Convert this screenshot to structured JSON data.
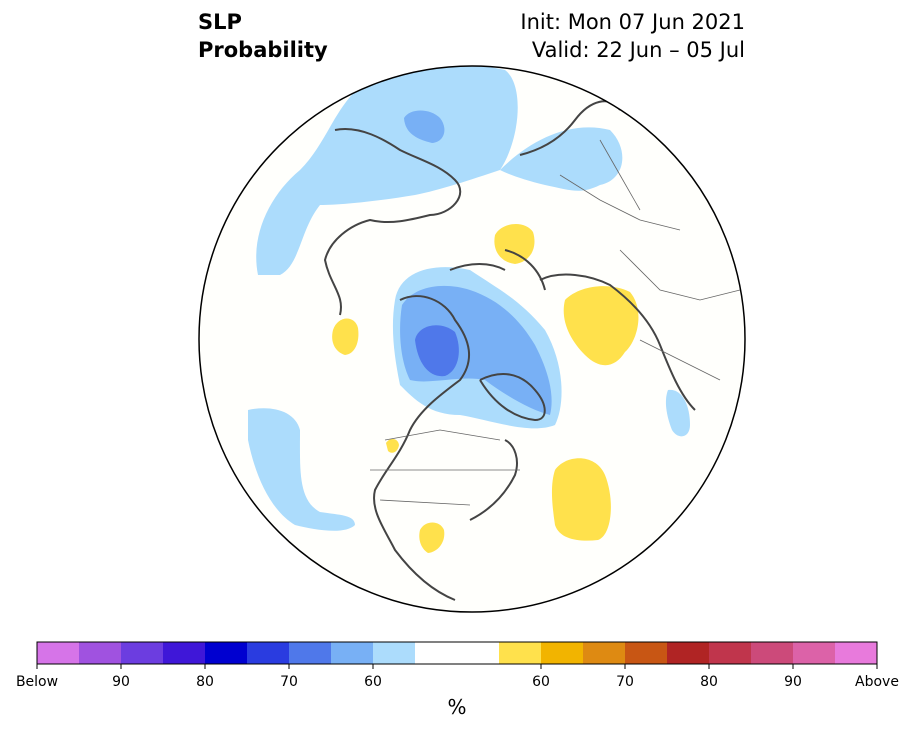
{
  "title": {
    "variable": "SLP",
    "product": "Probability",
    "init": "Init: Mon 07 Jun 2021",
    "valid": "Valid: 22 Jun – 05 Jul"
  },
  "colorbar": {
    "unit": "%",
    "colors": [
      "#d674e8",
      "#a052e0",
      "#6c3de0",
      "#3f17d8",
      "#0000d0",
      "#2a3ce0",
      "#4f78ea",
      "#78b0f5",
      "#acdcfc",
      "#ffffff",
      "#ffffff",
      "#ffe14c",
      "#f2b400",
      "#de8a12",
      "#c85614",
      "#b02424",
      "#c0354c",
      "#cc4a7a",
      "#dc62a8",
      "#e87adc"
    ],
    "tick_labels": [
      "Below",
      "90",
      "80",
      "70",
      "60",
      "60",
      "70",
      "80",
      "90",
      "Above"
    ]
  },
  "map": {
    "projection": "north polar stereographic",
    "regions": [
      {
        "name": "north-pacific-bering-low",
        "category": "below 60",
        "color": "#acdcfc"
      },
      {
        "name": "bering-core",
        "category": "below 70",
        "color": "#78b0f5"
      },
      {
        "name": "arctic-ocean-low",
        "category": "below 60",
        "color": "#acdcfc"
      },
      {
        "name": "arctic-low",
        "category": "below 70",
        "color": "#78b0f5"
      },
      {
        "name": "arctic-low-core",
        "category": "below 80",
        "color": "#4f78ea"
      },
      {
        "name": "east-pacific-low",
        "category": "below 60",
        "color": "#acdcfc"
      },
      {
        "name": "north-atlantic-high",
        "category": "above 60",
        "color": "#ffe14c"
      },
      {
        "name": "siberia-high",
        "category": "above 60",
        "color": "#ffe14c"
      },
      {
        "name": "barents-high",
        "category": "above 60",
        "color": "#ffe14c"
      },
      {
        "name": "pacific-small-high",
        "category": "above 60",
        "color": "#ffe14c"
      },
      {
        "name": "texas-high",
        "category": "above 60",
        "color": "#ffe14c"
      }
    ]
  }
}
